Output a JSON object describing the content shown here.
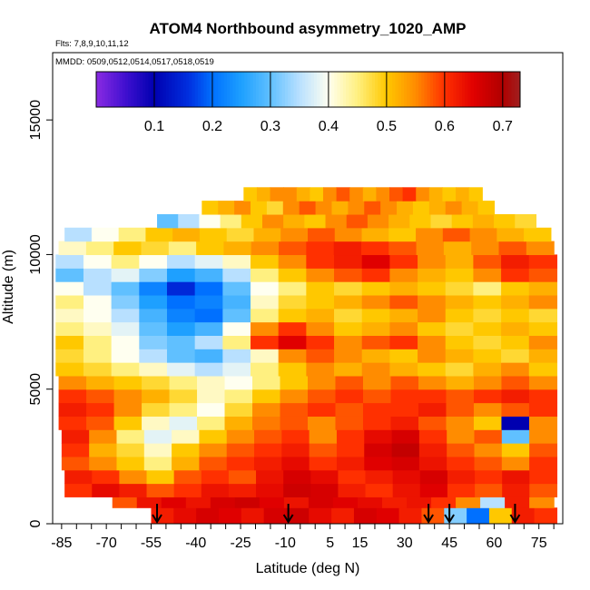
{
  "title": "ATOM4 Northbound asymmetry_1020_AMP",
  "flights_note": "Flts: 7,8,9,10,11,12",
  "dates_note": "MMDD: 0509,0512,0514,0517,0518,0519",
  "chart_data": {
    "type": "heatmap",
    "xlabel": "Latitude (deg N)",
    "ylabel": "Altitude (m)",
    "xlim": [
      -88,
      83
    ],
    "ylim": [
      0,
      17500
    ],
    "x_ticks": [
      -85,
      -80,
      -75,
      -70,
      -65,
      -60,
      -55,
      -50,
      -45,
      -40,
      -35,
      -30,
      -25,
      -20,
      -15,
      -10,
      -5,
      0,
      5,
      10,
      15,
      20,
      25,
      30,
      35,
      40,
      45,
      50,
      55,
      60,
      65,
      70,
      75,
      80
    ],
    "x_tick_labels": [
      "-85",
      "-70",
      "-55",
      "-40",
      "-25",
      "-10",
      "5",
      "15",
      "30",
      "45",
      "60",
      "75"
    ],
    "x_tick_label_values": [
      -85,
      -70,
      -55,
      -40,
      -25,
      -10,
      5,
      15,
      30,
      45,
      60,
      75
    ],
    "y_ticks": [
      0,
      5000,
      10000,
      15000
    ],
    "y_tick_labels": [
      "0",
      "5000",
      "10000",
      "15000"
    ],
    "colorbar": {
      "range": [
        0.0,
        0.73
      ],
      "ticks": [
        0.1,
        0.2,
        0.3,
        0.4,
        0.5,
        0.6,
        0.7
      ],
      "tick_labels": [
        "0.1",
        "0.2",
        "0.3",
        "0.4",
        "0.5",
        "0.6",
        "0.7"
      ],
      "stops": [
        {
          "v": 0.0,
          "color": "#8a2be2"
        },
        {
          "v": 0.05,
          "color": "#4010d0"
        },
        {
          "v": 0.1,
          "color": "#0000b0"
        },
        {
          "v": 0.16,
          "color": "#0030e0"
        },
        {
          "v": 0.2,
          "color": "#0070ff"
        },
        {
          "v": 0.25,
          "color": "#1ea0ff"
        },
        {
          "v": 0.3,
          "color": "#60c0ff"
        },
        {
          "v": 0.35,
          "color": "#b8e0ff"
        },
        {
          "v": 0.4,
          "color": "#fffff0"
        },
        {
          "v": 0.45,
          "color": "#fff080"
        },
        {
          "v": 0.5,
          "color": "#ffc800"
        },
        {
          "v": 0.55,
          "color": "#ff8c00"
        },
        {
          "v": 0.6,
          "color": "#ff3000"
        },
        {
          "v": 0.65,
          "color": "#e00000"
        },
        {
          "v": 0.7,
          "color": "#b00000"
        },
        {
          "v": 0.73,
          "color": "#a02020"
        }
      ]
    },
    "arrow_latitudes": [
      -53,
      -9,
      38,
      45,
      67
    ],
    "layers": [
      {
        "alt": [
          0,
          600
        ],
        "lat": [
          -55,
          81
        ],
        "values": [
          0.62,
          0.64,
          0.66,
          0.65,
          0.63,
          0.66,
          0.67,
          0.64,
          0.62,
          0.66,
          0.65,
          0.62,
          0.58,
          0.32,
          0.2,
          0.5,
          0.62,
          0.6
        ]
      },
      {
        "alt": [
          600,
          1000
        ],
        "lat": [
          -68,
          80
        ],
        "values": [
          0.58,
          0.63,
          0.65,
          0.63,
          0.66,
          0.67,
          0.65,
          0.63,
          0.66,
          0.65,
          0.64,
          0.62,
          0.63,
          0.6,
          0.55,
          0.35,
          0.62,
          0.55
        ]
      },
      {
        "alt": [
          1000,
          1500
        ],
        "lat": [
          -84,
          81
        ],
        "values": [
          0.6,
          0.64,
          0.62,
          0.58,
          0.6,
          0.63,
          0.62,
          0.64,
          0.67,
          0.66,
          0.62,
          0.6,
          0.63,
          0.65,
          0.6,
          0.58,
          0.62,
          0.58
        ]
      },
      {
        "alt": [
          1500,
          2000
        ],
        "lat": [
          -84,
          81
        ],
        "values": [
          0.62,
          0.6,
          0.55,
          0.5,
          0.58,
          0.6,
          0.58,
          0.63,
          0.66,
          0.64,
          0.6,
          0.62,
          0.64,
          0.66,
          0.62,
          0.6,
          0.63,
          0.6
        ]
      },
      {
        "alt": [
          2000,
          2500
        ],
        "lat": [
          -85,
          81
        ],
        "values": [
          0.58,
          0.55,
          0.5,
          0.45,
          0.52,
          0.58,
          0.6,
          0.62,
          0.64,
          0.6,
          0.62,
          0.65,
          0.66,
          0.63,
          0.6,
          0.58,
          0.55,
          0.6
        ]
      },
      {
        "alt": [
          2500,
          3000
        ],
        "lat": [
          -85,
          81
        ],
        "values": [
          0.6,
          0.52,
          0.48,
          0.42,
          0.5,
          0.55,
          0.58,
          0.6,
          0.62,
          0.58,
          0.6,
          0.66,
          0.68,
          0.62,
          0.58,
          0.55,
          0.5,
          0.58
        ]
      },
      {
        "alt": [
          3000,
          3500
        ],
        "lat": [
          -85,
          81
        ],
        "values": [
          0.62,
          0.55,
          0.45,
          0.38,
          0.42,
          0.5,
          0.55,
          0.58,
          0.6,
          0.55,
          0.6,
          0.64,
          0.66,
          0.6,
          0.55,
          0.58,
          0.3,
          0.55
        ]
      },
      {
        "alt": [
          3500,
          4000
        ],
        "lat": [
          -86,
          81
        ],
        "values": [
          0.6,
          0.58,
          0.5,
          0.42,
          0.38,
          0.45,
          0.52,
          0.56,
          0.58,
          0.55,
          0.58,
          0.6,
          0.62,
          0.58,
          0.55,
          0.5,
          0.1,
          0.55
        ]
      },
      {
        "alt": [
          4000,
          4500
        ],
        "lat": [
          -86,
          81
        ],
        "values": [
          0.62,
          0.6,
          0.55,
          0.48,
          0.45,
          0.4,
          0.48,
          0.55,
          0.58,
          0.6,
          0.58,
          0.6,
          0.6,
          0.62,
          0.58,
          0.55,
          0.58,
          0.6
        ]
      },
      {
        "alt": [
          4500,
          5000
        ],
        "lat": [
          -86,
          81
        ],
        "values": [
          0.6,
          0.58,
          0.55,
          0.52,
          0.48,
          0.42,
          0.45,
          0.5,
          0.55,
          0.58,
          0.6,
          0.58,
          0.6,
          0.6,
          0.58,
          0.6,
          0.62,
          0.6
        ]
      },
      {
        "alt": [
          5000,
          5500
        ],
        "lat": [
          -86,
          81
        ],
        "values": [
          0.55,
          0.52,
          0.5,
          0.48,
          0.45,
          0.42,
          0.4,
          0.45,
          0.5,
          0.55,
          0.58,
          0.55,
          0.58,
          0.55,
          0.52,
          0.55,
          0.58,
          0.55
        ]
      },
      {
        "alt": [
          5500,
          6000
        ],
        "lat": [
          -87,
          81
        ],
        "values": [
          0.5,
          0.48,
          0.45,
          0.42,
          0.38,
          0.35,
          0.38,
          0.45,
          0.5,
          0.55,
          0.52,
          0.55,
          0.52,
          0.5,
          0.48,
          0.52,
          0.55,
          0.5
        ]
      },
      {
        "alt": [
          6000,
          6500
        ],
        "lat": [
          -87,
          81
        ],
        "values": [
          0.48,
          0.45,
          0.4,
          0.35,
          0.3,
          0.28,
          0.35,
          0.42,
          0.55,
          0.58,
          0.55,
          0.52,
          0.5,
          0.55,
          0.52,
          0.5,
          0.48,
          0.52
        ]
      },
      {
        "alt": [
          6500,
          7000
        ],
        "lat": [
          -87,
          81
        ],
        "values": [
          0.5,
          0.45,
          0.4,
          0.32,
          0.3,
          0.35,
          0.45,
          0.6,
          0.65,
          0.6,
          0.55,
          0.58,
          0.6,
          0.55,
          0.5,
          0.48,
          0.5,
          0.55
        ]
      },
      {
        "alt": [
          7000,
          7500
        ],
        "lat": [
          -87,
          81
        ],
        "values": [
          0.45,
          0.42,
          0.38,
          0.3,
          0.25,
          0.28,
          0.4,
          0.55,
          0.6,
          0.55,
          0.5,
          0.52,
          0.55,
          0.5,
          0.48,
          0.5,
          0.52,
          0.5
        ]
      },
      {
        "alt": [
          7500,
          8000
        ],
        "lat": [
          -87,
          81
        ],
        "values": [
          0.42,
          0.4,
          0.35,
          0.28,
          0.22,
          0.2,
          0.3,
          0.45,
          0.5,
          0.52,
          0.48,
          0.5,
          0.52,
          0.55,
          0.5,
          0.48,
          0.5,
          0.48
        ]
      },
      {
        "alt": [
          8000,
          8500
        ],
        "lat": [
          -87,
          81
        ],
        "values": [
          0.45,
          0.4,
          0.32,
          0.25,
          0.2,
          0.22,
          0.28,
          0.42,
          0.48,
          0.5,
          0.52,
          0.55,
          0.58,
          0.55,
          0.52,
          0.5,
          0.52,
          0.55
        ]
      },
      {
        "alt": [
          8500,
          9000
        ],
        "lat": [
          -87,
          81
        ],
        "values": [
          0.4,
          0.35,
          0.3,
          0.22,
          0.15,
          0.2,
          0.3,
          0.4,
          0.45,
          0.5,
          0.48,
          0.5,
          0.52,
          0.5,
          0.48,
          0.45,
          0.5,
          0.52
        ]
      },
      {
        "alt": [
          9000,
          9500
        ],
        "lat": [
          -87,
          81
        ],
        "values": [
          0.3,
          0.35,
          0.38,
          0.32,
          0.25,
          0.28,
          0.35,
          0.45,
          0.5,
          0.55,
          0.58,
          0.6,
          0.55,
          0.52,
          0.5,
          0.55,
          0.6,
          0.58
        ]
      },
      {
        "alt": [
          9500,
          10000
        ],
        "lat": [
          -87,
          81
        ],
        "values": [
          0.35,
          0.4,
          0.45,
          0.4,
          0.35,
          0.38,
          0.42,
          0.5,
          0.55,
          0.6,
          0.62,
          0.65,
          0.6,
          0.55,
          0.52,
          0.58,
          0.62,
          0.6
        ]
      },
      {
        "alt": [
          10000,
          10500
        ],
        "lat": [
          -86,
          80
        ],
        "values": [
          0.42,
          0.45,
          0.5,
          0.48,
          0.45,
          0.5,
          0.52,
          0.55,
          0.58,
          0.6,
          0.62,
          0.6,
          0.58,
          0.55,
          0.52,
          0.55,
          0.58,
          0.55
        ]
      },
      {
        "alt": [
          10500,
          11000
        ],
        "lat": [
          -84,
          79
        ],
        "values": [
          0.35,
          0.4,
          0.45,
          0.5,
          0.52,
          0.5,
          0.48,
          0.52,
          0.55,
          0.58,
          0.55,
          0.52,
          0.5,
          0.55,
          0.58,
          0.55,
          0.52,
          0.5
        ]
      },
      {
        "alt": [
          11000,
          11500
        ],
        "lat": [
          -53,
          74
        ],
        "values": [
          0.3,
          0.35,
          0.4,
          0.45,
          0.5,
          0.55,
          0.52,
          0.5,
          0.55,
          0.58,
          0.55,
          0.52,
          0.5,
          0.48,
          0.5,
          0.52,
          0.5,
          0.48
        ]
      },
      {
        "alt": [
          11500,
          12000
        ],
        "lat": [
          -38,
          60
        ],
        "values": [
          0.5,
          0.52,
          0.55,
          0.5,
          0.48,
          0.55,
          0.58,
          0.55,
          0.52,
          0.55,
          0.58,
          0.55,
          0.52,
          0.5,
          0.52,
          0.55,
          0.52,
          0.5
        ]
      },
      {
        "alt": [
          12000,
          12500
        ],
        "lat": [
          -24,
          56
        ],
        "values": [
          0.5,
          0.52,
          0.55,
          0.55,
          0.52,
          0.5,
          0.55,
          0.58,
          0.55,
          0.52,
          0.55,
          0.58,
          0.6,
          0.55,
          0.52,
          0.5,
          0.52,
          0.5
        ]
      }
    ]
  }
}
